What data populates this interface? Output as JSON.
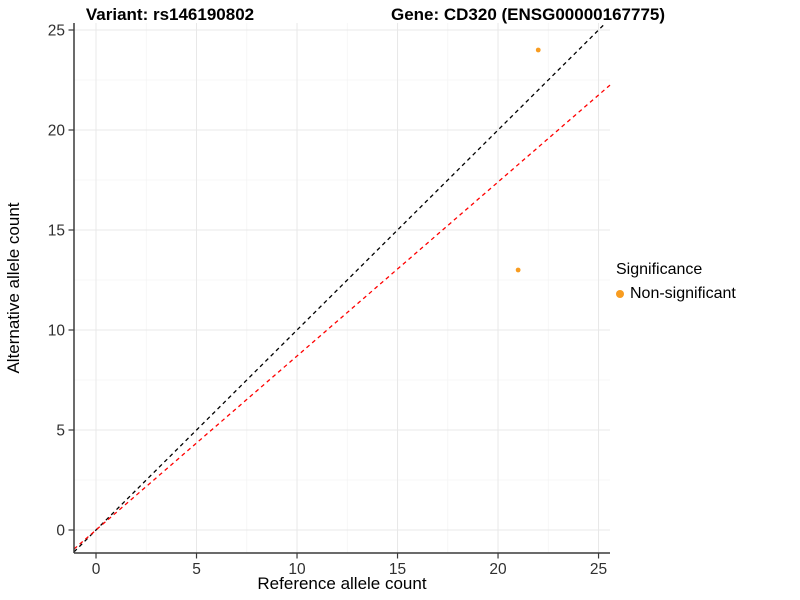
{
  "titles": {
    "variant": "Variant: rs146190802",
    "gene": "Gene: CD320 (ENSG00000167775)"
  },
  "legend": {
    "title": "Significance",
    "items": [
      {
        "label": "Non-significant",
        "color": "#F89C20"
      }
    ]
  },
  "chart_data": {
    "type": "scatter",
    "title": "Variant: rs146190802   Gene: CD320 (ENSG00000167775)",
    "xlabel": "Reference allele count",
    "ylabel": "Alternative allele count",
    "xlim": [
      -1.095,
      25.57
    ],
    "ylim": [
      -1.15,
      25.35
    ],
    "x_ticks": [
      0,
      5,
      10,
      15,
      20,
      25
    ],
    "y_ticks": [
      0,
      5,
      10,
      15,
      20,
      25
    ],
    "grid": "on",
    "legend_position": "right",
    "series": [
      {
        "name": "Non-significant",
        "color": "#F89C20",
        "points": [
          {
            "x": 22,
            "y": 24
          },
          {
            "x": 21,
            "y": 13
          }
        ]
      }
    ],
    "reference_lines": [
      {
        "name": "identity",
        "slope": 1.0,
        "intercept": 0,
        "color": "#000000",
        "style": "dashed"
      },
      {
        "name": "expected-ratio",
        "slope": 0.87,
        "intercept": 0,
        "color": "#FF0000",
        "style": "dashed"
      }
    ],
    "colors": {
      "major_grid": "#E8E8E8",
      "minor_grid": "#F4F4F4",
      "axis_line": "#3a3a3a",
      "tick_label": "#303030"
    }
  }
}
